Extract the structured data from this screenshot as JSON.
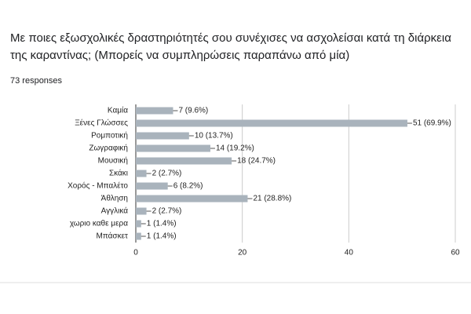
{
  "chart_data": {
    "type": "bar",
    "orientation": "horizontal",
    "title": "Με ποιες εξωσχολικές δραστηριότητές σου συνέχισες να ασχολείσαι κατά τη διάρκεια της καραντίνας; (Μπορείς να συμπληρώσεις παραπάνω από μία)",
    "subtitle": "73 responses",
    "categories": [
      "Καμία",
      "Ξένες Γλώσσες",
      "Ρομποτική",
      "Ζωγραφική",
      "Μουσική",
      "Σκάκι",
      "Χορός - Μπαλέτο",
      "Άθληση",
      "Αγγλικά",
      "χωριο καθε μερα",
      "Μπάσκετ"
    ],
    "values": [
      7,
      51,
      10,
      14,
      18,
      2,
      6,
      21,
      2,
      1,
      1
    ],
    "value_labels": [
      "7 (9.6%)",
      "51 (69.9%)",
      "10 (13.7%)",
      "14 (19.2%)",
      "18 (24.7%)",
      "2 (2.7%)",
      "6 (8.2%)",
      "21 (28.8%)",
      "2 (2.7%)",
      "1 (1.4%)",
      "1 (1.4%)"
    ],
    "color": "#a9b3bc",
    "xlim": [
      0,
      60
    ],
    "xticks": [
      0,
      20,
      40,
      60
    ],
    "grid": true
  }
}
